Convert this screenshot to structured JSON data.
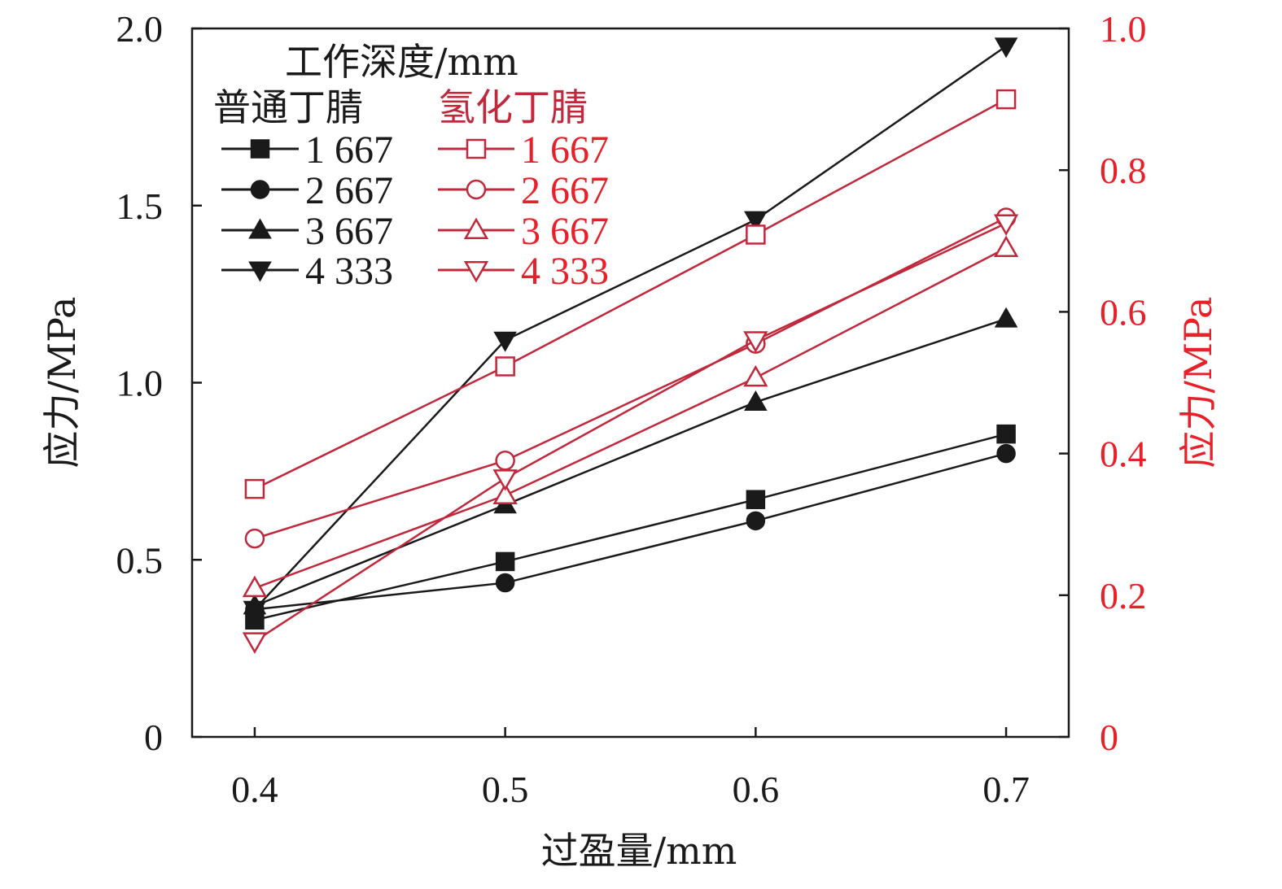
{
  "chart_data": {
    "type": "line",
    "xlabel": "过盈量/mm",
    "ylabel_left": "应力/MPa",
    "ylabel_right": "应力/MPa",
    "xlim": [
      0.375,
      0.725
    ],
    "ylim_left": [
      0,
      2.0
    ],
    "ylim_right": [
      0,
      1.0
    ],
    "x_ticks": [
      "0.4",
      "0.5",
      "0.6",
      "0.7"
    ],
    "y_ticks_left": [
      "0",
      "0.5",
      "1.0",
      "1.5",
      "2.0"
    ],
    "y_ticks_right": [
      "0",
      "0.2",
      "0.4",
      "0.6",
      "0.8",
      "1.0"
    ],
    "x": [
      0.4,
      0.5,
      0.6,
      0.7
    ],
    "grid": false,
    "legend": {
      "title": "工作深度/mm",
      "group_left": "普通丁腈",
      "group_right": "氢化丁腈",
      "placement": "top-left"
    },
    "colors": {
      "black": "#1a1a1a",
      "red": "#c0283c",
      "right_axis": "#e8202a"
    },
    "series": [
      {
        "name": "1 667",
        "group": "普通丁腈",
        "axis": "left",
        "marker": "square-filled",
        "values": [
          0.33,
          0.495,
          0.67,
          0.855
        ]
      },
      {
        "name": "2 667",
        "group": "普通丁腈",
        "axis": "left",
        "marker": "circle-filled",
        "values": [
          0.36,
          0.435,
          0.61,
          0.8
        ]
      },
      {
        "name": "3 667",
        "group": "普通丁腈",
        "axis": "left",
        "marker": "triangle-up-filled",
        "values": [
          0.37,
          0.655,
          0.945,
          1.18
        ]
      },
      {
        "name": "4 333",
        "group": "普通丁腈",
        "axis": "left",
        "marker": "triangle-down-filled",
        "values": [
          0.36,
          1.12,
          1.46,
          1.95
        ]
      },
      {
        "name": "1 667",
        "group": "氢化丁腈",
        "axis": "right",
        "marker": "square-open",
        "values": [
          0.35,
          0.523,
          0.709,
          0.9
        ]
      },
      {
        "name": "2 667",
        "group": "氢化丁腈",
        "axis": "right",
        "marker": "circle-open",
        "values": [
          0.28,
          0.39,
          0.555,
          0.733
        ]
      },
      {
        "name": "3 667",
        "group": "氢化丁腈",
        "axis": "right",
        "marker": "triangle-up-open",
        "values": [
          0.21,
          0.341,
          0.507,
          0.69
        ]
      },
      {
        "name": "4 333",
        "group": "氢化丁腈",
        "axis": "right",
        "marker": "triangle-down-open",
        "values": [
          0.135,
          0.365,
          0.56,
          0.725
        ]
      }
    ]
  }
}
